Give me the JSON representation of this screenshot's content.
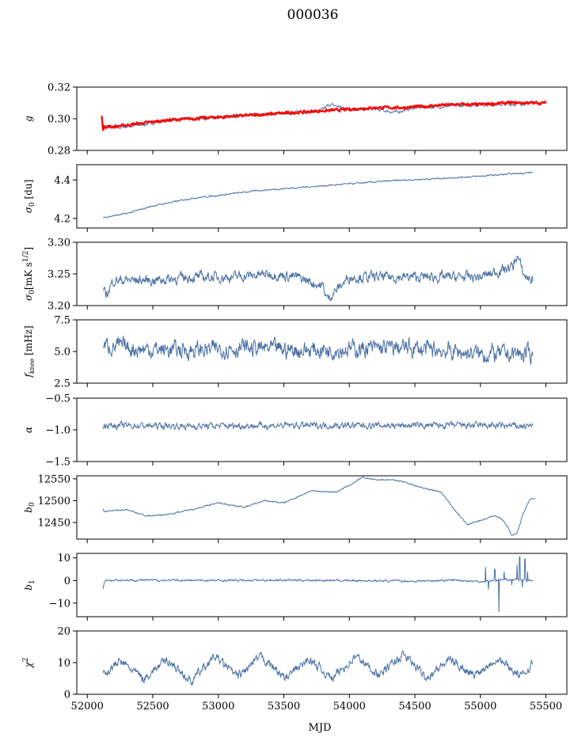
{
  "figure_title": "000036",
  "xlabel": "MJD",
  "x_ticks": [
    52000,
    52500,
    53000,
    53500,
    54000,
    54500,
    55000,
    55500
  ],
  "xlim": [
    51920,
    55660
  ],
  "series_color": "#4c72a4",
  "fit_color": "#ff0000",
  "chart_data": [
    {
      "type": "line",
      "ylabel": "g",
      "ylim": [
        0.28,
        0.32
      ],
      "yticks": [
        0.28,
        0.3,
        0.32
      ],
      "ytick_labels": [
        "0.28",
        "0.30",
        "0.32"
      ],
      "series": [
        {
          "color": "#4c72a4",
          "x": [
            52120,
            52200,
            52400,
            52600,
            52800,
            53000,
            53200,
            53400,
            53600,
            53780,
            53850,
            54000,
            54200,
            54350,
            54500,
            54800,
            55000,
            55200,
            55400
          ],
          "y": [
            0.296,
            0.294,
            0.296,
            0.299,
            0.3,
            0.301,
            0.302,
            0.303,
            0.304,
            0.305,
            0.309,
            0.306,
            0.306,
            0.304,
            0.307,
            0.308,
            0.309,
            0.309,
            0.31
          ],
          "noise": 0.0008
        },
        {
          "color": "#ff0000",
          "x": [
            52110,
            52120,
            52130,
            52200,
            52400,
            52600,
            52800,
            53000,
            53200,
            53400,
            53600,
            53800,
            54000,
            54200,
            54400,
            54600,
            54800,
            55000,
            55200,
            55400,
            55500
          ],
          "y": [
            0.302,
            0.293,
            0.295,
            0.295,
            0.297,
            0.299,
            0.3,
            0.301,
            0.302,
            0.303,
            0.304,
            0.305,
            0.306,
            0.307,
            0.307,
            0.308,
            0.309,
            0.309,
            0.31,
            0.31,
            0.31
          ],
          "noise": 0.0006,
          "width": 2.2
        }
      ]
    },
    {
      "type": "line",
      "ylabel": "σ0 [du]",
      "ylim": [
        4.15,
        4.48
      ],
      "yticks": [
        4.2,
        4.4
      ],
      "ytick_labels": [
        "4.2",
        "4.4"
      ],
      "series": [
        {
          "color": "#4c72a4",
          "x": [
            52120,
            52300,
            52500,
            52800,
            53000,
            53300,
            53600,
            54000,
            54300,
            54600,
            55000,
            55200,
            55400
          ],
          "y": [
            4.205,
            4.225,
            4.265,
            4.305,
            4.32,
            4.345,
            4.36,
            4.38,
            4.395,
            4.405,
            4.42,
            4.43,
            4.44
          ],
          "noise": 0.003
        }
      ]
    },
    {
      "type": "line",
      "ylabel": "σ0[mK s^1/2]",
      "ylim": [
        3.2,
        3.3
      ],
      "yticks": [
        3.2,
        3.25,
        3.3
      ],
      "ytick_labels": [
        "3.20",
        "3.25",
        "3.30"
      ],
      "series": [
        {
          "color": "#4c72a4",
          "x": [
            52120,
            52140,
            52200,
            52500,
            52800,
            53100,
            53400,
            53600,
            53800,
            53830,
            54000,
            54500,
            55000,
            55250,
            55280,
            55330,
            55400
          ],
          "y": [
            3.225,
            3.215,
            3.24,
            3.24,
            3.245,
            3.245,
            3.25,
            3.245,
            3.23,
            3.21,
            3.245,
            3.245,
            3.245,
            3.262,
            3.28,
            3.248,
            3.24
          ],
          "noise": 0.0065
        }
      ]
    },
    {
      "type": "line",
      "ylabel": "f_knee [mHz]",
      "ylim": [
        2.5,
        7.5
      ],
      "yticks": [
        2.5,
        5.0,
        7.5
      ],
      "ytick_labels": [
        "2.5",
        "5.0",
        "7.5"
      ],
      "series": [
        {
          "color": "#4c72a4",
          "x": [
            52120,
            52400,
            52800,
            53200,
            53600,
            54000,
            54400,
            54800,
            55000,
            55400
          ],
          "y": [
            5.5,
            5.2,
            5.1,
            5.3,
            5.1,
            5.2,
            5.3,
            5.0,
            4.8,
            4.8
          ],
          "noise": 0.55
        }
      ]
    },
    {
      "type": "line",
      "ylabel": "α",
      "ylim": [
        -1.5,
        -0.5
      ],
      "yticks": [
        -1.5,
        -1.0,
        -0.5
      ],
      "ytick_labels": [
        "−1.5",
        "−1.0",
        "−0.5"
      ],
      "series": [
        {
          "color": "#4c72a4",
          "x": [
            52120,
            52800,
            53500,
            54200,
            54900,
            55400
          ],
          "y": [
            -0.93,
            -0.94,
            -0.93,
            -0.93,
            -0.93,
            -0.94
          ],
          "noise": 0.04
        }
      ]
    },
    {
      "type": "line",
      "ylabel": "b0",
      "ylim": [
        12412,
        12557
      ],
      "yticks": [
        12450,
        12500,
        12550
      ],
      "ytick_labels": [
        "12450",
        "12500",
        "12550"
      ],
      "series": [
        {
          "color": "#4c72a4",
          "x": [
            52120,
            52130,
            52300,
            52450,
            52600,
            52800,
            53000,
            53200,
            53350,
            53500,
            53600,
            53700,
            53900,
            54000,
            54100,
            54200,
            54300,
            54400,
            54550,
            54700,
            54800,
            54900,
            55000,
            55100,
            55150,
            55180,
            55210,
            55240,
            55280,
            55320,
            55380,
            55420
          ],
          "y": [
            12482,
            12475,
            12480,
            12465,
            12468,
            12480,
            12495,
            12485,
            12500,
            12495,
            12508,
            12522,
            12520,
            12535,
            12553,
            12548,
            12548,
            12545,
            12530,
            12520,
            12480,
            12445,
            12455,
            12465,
            12462,
            12452,
            12440,
            12420,
            12425,
            12465,
            12505,
            12505
          ],
          "noise": 1.2
        }
      ]
    },
    {
      "type": "line",
      "ylabel": "b1",
      "ylim": [
        -16,
        12
      ],
      "yticks": [
        -10,
        0,
        10
      ],
      "ytick_labels": [
        "−10",
        "0",
        "10"
      ],
      "series": [
        {
          "color": "#4c72a4",
          "x": [
            52120,
            52130,
            52150,
            53000,
            53500,
            54000,
            54500,
            54800,
            55000,
            55100,
            55200,
            55400
          ],
          "y": [
            -3.5,
            -0.5,
            0.2,
            0.0,
            0.2,
            0.0,
            -0.3,
            0.2,
            -0.5,
            0.0,
            0.5,
            0.0
          ],
          "noise": 0.35,
          "spikes": [
            [
              55040,
              6.0
            ],
            [
              55060,
              -4.0
            ],
            [
              55110,
              5.0
            ],
            [
              55140,
              -14.0
            ],
            [
              55180,
              4.0
            ],
            [
              55240,
              -2.0
            ],
            [
              55280,
              7.0
            ],
            [
              55300,
              10.5
            ],
            [
              55320,
              -3.0
            ],
            [
              55340,
              9.5
            ],
            [
              55360,
              4.0
            ]
          ]
        }
      ]
    },
    {
      "type": "line",
      "ylabel": "χ2",
      "ylim": [
        0,
        20
      ],
      "yticks": [
        0,
        10,
        20
      ],
      "ytick_labels": [
        "0",
        "10",
        "20"
      ],
      "series": [
        {
          "color": "#4c72a4",
          "x": [
            52120,
            52250,
            52430,
            52610,
            52790,
            52970,
            53150,
            53330,
            53510,
            53690,
            53870,
            54050,
            54230,
            54410,
            54590,
            54770,
            54950,
            55130,
            55310,
            55400
          ],
          "y": [
            6.0,
            10.5,
            5.0,
            11.0,
            4.0,
            12.0,
            5.5,
            12.0,
            5.0,
            11.0,
            5.0,
            12.0,
            6.0,
            12.5,
            5.5,
            11.0,
            6.0,
            11.5,
            5.5,
            10.0
          ],
          "noise": 1.1
        }
      ]
    }
  ]
}
